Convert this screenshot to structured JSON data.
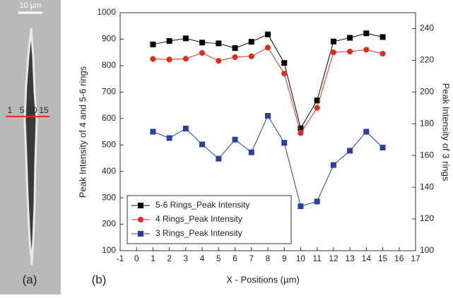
{
  "image_panel": {
    "scale_label": "10 µm",
    "markers": [
      "1",
      "5",
      "10",
      "15"
    ],
    "panel_label": "(a)"
  },
  "chart_data": {
    "type": "line",
    "panel_label": "(b)",
    "x_label": "X - Positions (µm)",
    "y_label": "Peak Intensity of 4 and 5-6 rings",
    "y2_label": "Peak Intensity of 3 rings",
    "x": [
      1,
      2,
      3,
      4,
      5,
      6,
      7,
      8,
      9,
      10,
      11,
      12,
      13,
      14,
      15
    ],
    "series": [
      {
        "name": "5-6 Rings_Peak Intensity",
        "color": "#000000",
        "marker": "square",
        "values": [
          880,
          893,
          903,
          887,
          884,
          866,
          890,
          918,
          810,
          563,
          668,
          891,
          905,
          922,
          908
        ]
      },
      {
        "name": "4 Rings_Peak Intensity",
        "color": "#e8281c",
        "marker": "circle",
        "values": [
          825,
          823,
          826,
          848,
          818,
          832,
          835,
          868,
          770,
          545,
          640,
          850,
          853,
          860,
          845
        ]
      },
      {
        "name": "3 Rings_Peak Intensity",
        "color": "#2b3f9e",
        "marker": "square",
        "axis": "y2",
        "values": [
          175,
          171,
          177,
          167,
          158,
          170,
          162,
          185,
          168,
          128,
          131,
          154,
          163,
          175,
          165
        ]
      }
    ],
    "xlim": [
      -1,
      17
    ],
    "xticks": [
      -1,
      0,
      1,
      2,
      3,
      4,
      5,
      6,
      7,
      8,
      9,
      10,
      11,
      12,
      13,
      14,
      15,
      16,
      17
    ],
    "ylim": [
      100,
      1000
    ],
    "yticks": [
      100,
      200,
      300,
      400,
      500,
      600,
      700,
      800,
      900,
      1000
    ],
    "y2lim": [
      100,
      250
    ],
    "y2ticks": [
      100,
      120,
      140,
      160,
      180,
      200,
      220,
      240
    ],
    "legend": "lower left"
  }
}
